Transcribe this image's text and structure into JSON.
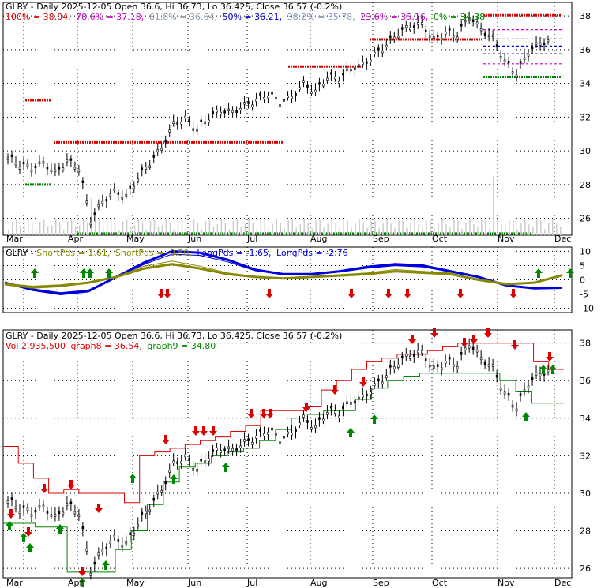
{
  "colors": {
    "background": "#ffffff",
    "frame": "#000000",
    "grid": "#000000",
    "up_arrow": "#008800",
    "down_arrow": "#dd0000",
    "fib_100": "#dd0000",
    "fib_786": "#cc00cc",
    "fib_618": "#888888",
    "fib_50": "#0000cc",
    "fib_382": "#8899bb",
    "fib_236": "#cc00cc",
    "fib_0": "#008800",
    "short_pds": "#888800",
    "long_pds": "#0000dd",
    "graph8": "#dd0000",
    "graph9": "#008800",
    "candle": "#000000",
    "volume": "#cccccc"
  },
  "chart_data": [
    {
      "type": "candlestick",
      "panel": "price-fib",
      "header": {
        "title": "GLRY - Daily 2025-12-05 Open 36.6, Hi 36.73, Lo 36.425, Close 36.57 (-0.2%)",
        "levels": [
          {
            "text": "100% = 38.04,",
            "color": "#dd0000"
          },
          {
            "text": "78.6% = 37.18,",
            "color": "#cc00cc"
          },
          {
            "text": "61.8% = 36.64,",
            "color": "#888888"
          },
          {
            "text": "50% = 36.21,",
            "color": "#0000cc"
          },
          {
            "text": "38.2% = 35.78,",
            "color": "#8899bb"
          },
          {
            "text": "23.6% = 35.16,",
            "color": "#cc00cc"
          },
          {
            "text": "0% = 34.38",
            "color": "#008800"
          }
        ]
      },
      "x_labels": [
        "Mar",
        "Apr",
        "May",
        "Jun",
        "Jul",
        "Aug",
        "Sep",
        "Oct",
        "Nov",
        "Dec"
      ],
      "y_ticks": [
        26,
        28,
        30,
        32,
        34,
        36,
        38
      ],
      "ylim": [
        25.0,
        38.8
      ],
      "grid": true,
      "close_points": [
        [
          "Mar",
          29.6
        ],
        [
          "Mar",
          29.2
        ],
        [
          "Mar",
          29.0
        ],
        [
          "Mar",
          29.3
        ],
        [
          "Mar",
          28.7
        ],
        [
          "Mar",
          29.4
        ],
        [
          "Apr",
          29.0
        ],
        [
          "Apr",
          25.9
        ],
        [
          "Apr",
          27.0
        ],
        [
          "Apr",
          27.6
        ],
        [
          "Apr",
          27.3
        ],
        [
          "Apr",
          28.4
        ],
        [
          "May",
          29.3
        ],
        [
          "May",
          30.2
        ],
        [
          "May",
          31.6
        ],
        [
          "May",
          31.9
        ],
        [
          "May",
          31.3
        ],
        [
          "Jun",
          32.0
        ],
        [
          "Jun",
          32.4
        ],
        [
          "Jun",
          32.3
        ],
        [
          "Jun",
          32.7
        ],
        [
          "Jul",
          33.0
        ],
        [
          "Jul",
          33.4
        ],
        [
          "Jul",
          32.9
        ],
        [
          "Jul",
          33.2
        ],
        [
          "Jul",
          34.0
        ],
        [
          "Aug",
          33.5
        ],
        [
          "Aug",
          34.4
        ],
        [
          "Aug",
          34.3
        ],
        [
          "Aug",
          34.9
        ],
        [
          "Aug",
          35.1
        ],
        [
          "Sep",
          35.7
        ],
        [
          "Sep",
          36.3
        ],
        [
          "Sep",
          37.0
        ],
        [
          "Sep",
          37.4
        ],
        [
          "Oct",
          37.5
        ],
        [
          "Oct",
          36.6
        ],
        [
          "Oct",
          37.0
        ],
        [
          "Oct",
          36.9
        ],
        [
          "Oct",
          38.0
        ],
        [
          "Nov",
          37.2
        ],
        [
          "Nov",
          36.7
        ],
        [
          "Nov",
          35.3
        ],
        [
          "Nov",
          34.6
        ],
        [
          "Nov",
          35.9
        ],
        [
          "Dec",
          36.4
        ],
        [
          "Dec",
          36.57
        ]
      ],
      "fib_levels": [
        {
          "name": "100%",
          "value": 38.04,
          "color": "#dd0000"
        },
        {
          "name": "78.6%",
          "value": 37.18,
          "color": "#cc00cc"
        },
        {
          "name": "61.8%",
          "value": 36.64,
          "color": "#888888"
        },
        {
          "name": "50%",
          "value": 36.21,
          "color": "#0000cc"
        },
        {
          "name": "38.2%",
          "value": 35.78,
          "color": "#8899bb"
        },
        {
          "name": "23.6%",
          "value": 35.16,
          "color": "#cc00cc"
        },
        {
          "name": "0%",
          "value": 34.38,
          "color": "#008800"
        }
      ]
    },
    {
      "type": "line",
      "panel": "oscillator",
      "header": {
        "title": "GLRY - ",
        "series_labels": [
          {
            "text": "ShortPds = 1.61,",
            "color": "#888800"
          },
          {
            "text": "ShortPds = -0.50,",
            "color": "#888800"
          },
          {
            "text": "LongPds = -1.65,",
            "color": "#0000dd"
          },
          {
            "text": "LongPds = -2.76",
            "color": "#0000dd"
          }
        ]
      },
      "y_ticks": [
        10,
        5,
        0,
        -5,
        -10
      ],
      "ylim": [
        -11.5,
        11.5
      ],
      "grid": true,
      "short_pds_points": [
        [
          "Mar",
          -1.5
        ],
        [
          "Mar",
          -2.5
        ],
        [
          "Apr",
          -2.0
        ],
        [
          "Apr",
          -1.0
        ],
        [
          "Apr",
          1.0
        ],
        [
          "May",
          4.0
        ],
        [
          "May",
          5.5
        ],
        [
          "Jun",
          4.0
        ],
        [
          "Jun",
          2.0
        ],
        [
          "Jul",
          1.0
        ],
        [
          "Jul",
          0.5
        ],
        [
          "Aug",
          1.0
        ],
        [
          "Aug",
          1.5
        ],
        [
          "Sep",
          2.0
        ],
        [
          "Sep",
          3.0
        ],
        [
          "Oct",
          2.5
        ],
        [
          "Oct",
          2.0
        ],
        [
          "Nov",
          0.0
        ],
        [
          "Nov",
          -1.5
        ],
        [
          "Dec",
          -1.0
        ],
        [
          "Dec",
          1.61
        ]
      ],
      "long_pds_points": [
        [
          "Mar",
          -1.0
        ],
        [
          "Mar",
          -3.5
        ],
        [
          "Apr",
          -5.0
        ],
        [
          "Apr",
          -4.0
        ],
        [
          "Apr",
          1.0
        ],
        [
          "May",
          6.0
        ],
        [
          "May",
          10.0
        ],
        [
          "Jun",
          9.5
        ],
        [
          "Jun",
          7.0
        ],
        [
          "Jul",
          3.5
        ],
        [
          "Jul",
          2.0
        ],
        [
          "Aug",
          2.0
        ],
        [
          "Aug",
          3.0
        ],
        [
          "Sep",
          4.5
        ],
        [
          "Sep",
          5.5
        ],
        [
          "Oct",
          5.0
        ],
        [
          "Oct",
          3.0
        ],
        [
          "Nov",
          1.0
        ],
        [
          "Nov",
          -2.0
        ],
        [
          "Dec",
          -3.0
        ],
        [
          "Dec",
          -2.76
        ]
      ],
      "up_arrows": [
        [
          "Mar",
          2
        ],
        [
          "Apr",
          0
        ],
        [
          "Apr",
          1
        ],
        [
          "Apr",
          4
        ],
        [
          "Nov",
          4
        ],
        [
          "Dec",
          0
        ]
      ],
      "down_arrows": [
        [
          "May",
          3
        ],
        [
          "May",
          4
        ],
        [
          "Jul",
          1
        ],
        [
          "Aug",
          4
        ],
        [
          "Sep",
          0
        ],
        [
          "Sep",
          3
        ],
        [
          "Oct",
          2
        ],
        [
          "Nov",
          0
        ]
      ]
    },
    {
      "type": "candlestick",
      "panel": "price-stops",
      "header": {
        "title": "GLRY - Daily 2025-12-05 Open 36.6, Hi 36.73, Lo 36.425, Close 36.57 (-0.2%)",
        "lines": [
          {
            "text": "Vol 2,935,500",
            "color": "#dd0000"
          },
          {
            "text": "graph8 = 36.54,",
            "color": "#dd0000"
          },
          {
            "text": "graph9 = 34.80",
            "color": "#008800"
          }
        ]
      },
      "y_ticks": [
        26,
        28,
        30,
        32,
        34,
        36,
        38
      ],
      "ylim": [
        25.5,
        38.7
      ],
      "grid": true
    }
  ]
}
